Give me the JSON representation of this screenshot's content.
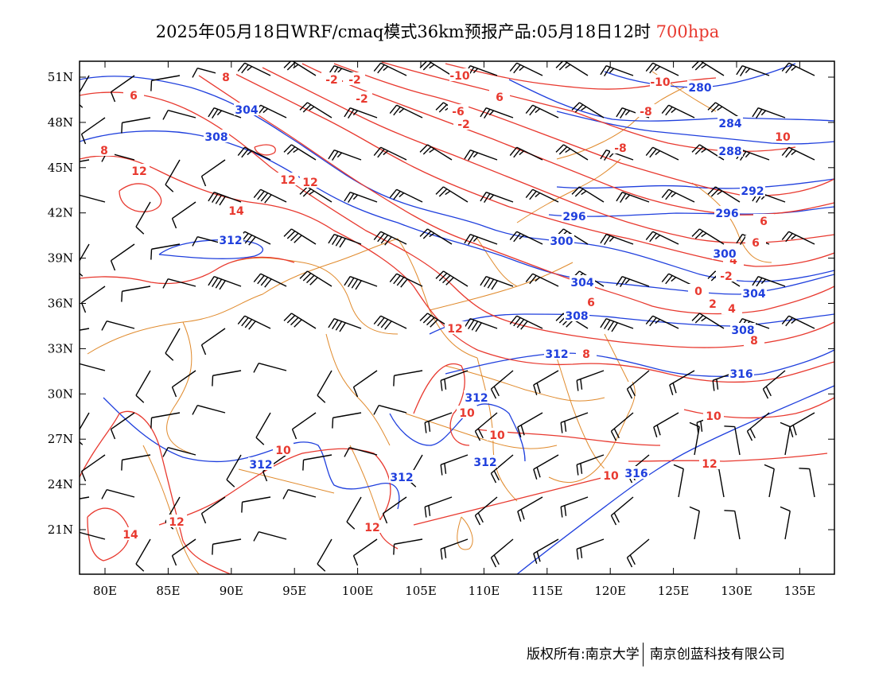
{
  "title": {
    "main": "2025年05月18日WRF/cmaq模式36km预报产品:05月18日12时",
    "level": "700hpa"
  },
  "footer": {
    "owner": "版权所有:南京大学",
    "company": "南京创蓝科技有限公司"
  },
  "colors": {
    "temperature": "#e8392f",
    "height": "#1f3fdd",
    "boundary": "#e08a2c",
    "wind": "#000000"
  },
  "axes": {
    "lon_ticks": [
      "80E",
      "85E",
      "90E",
      "95E",
      "100E",
      "105E",
      "110E",
      "115E",
      "120E",
      "125E",
      "130E",
      "135E"
    ],
    "lat_ticks": [
      "51N",
      "48N",
      "45N",
      "42N",
      "39N",
      "36N",
      "33N",
      "30N",
      "27N",
      "24N",
      "21N"
    ]
  },
  "temperature_labels": [
    "-10",
    "-10",
    "-8",
    "-8",
    "-6",
    "-4",
    "-2",
    "-2",
    "-2",
    "-2",
    "-2",
    "0",
    "2",
    "4",
    "4",
    "6",
    "6",
    "6",
    "6",
    "6",
    "8",
    "8",
    "8",
    "8",
    "10",
    "10",
    "10",
    "10",
    "10",
    "10",
    "12",
    "12",
    "12",
    "12",
    "12",
    "12",
    "12",
    "14",
    "14"
  ],
  "height_labels": [
    "280",
    "284",
    "288",
    "292",
    "296",
    "296",
    "300",
    "300",
    "304",
    "304",
    "304",
    "308",
    "308",
    "308",
    "312",
    "312",
    "312",
    "312",
    "312",
    "312",
    "316",
    "316"
  ]
}
